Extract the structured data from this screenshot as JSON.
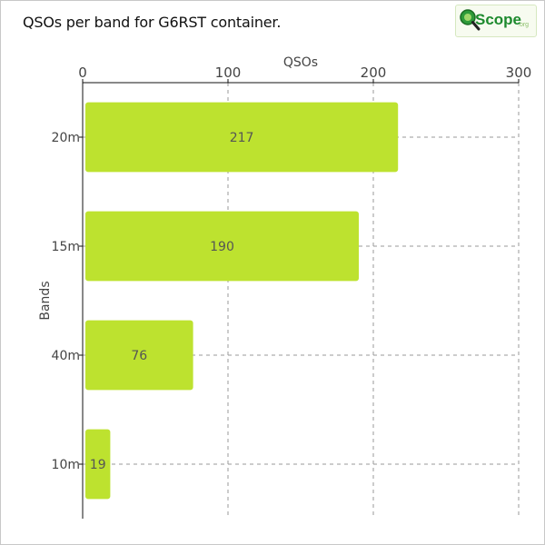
{
  "title": "QSOs per band for G6RST container.",
  "logo": {
    "main": "Scope",
    "sub": ".org",
    "icon": "qscope-magnifier-icon"
  },
  "colors": {
    "bar": "#bde22f",
    "grid": "#999999",
    "axis": "#111111",
    "label": "#444444"
  },
  "chart_data": {
    "type": "bar",
    "orientation": "horizontal",
    "categories": [
      "20m",
      "15m",
      "40m",
      "10m"
    ],
    "values": [
      217,
      190,
      76,
      19
    ],
    "data_labels": [
      "217",
      "190",
      "76",
      "19"
    ],
    "xlabel": "QSOs",
    "ylabel": "Bands",
    "xlim": [
      0,
      300
    ],
    "x_ticks": [
      0,
      100,
      200,
      300
    ],
    "x_tick_labels": [
      "0",
      "100",
      "200",
      "300"
    ],
    "x_axis_position": "top",
    "grid": true
  }
}
